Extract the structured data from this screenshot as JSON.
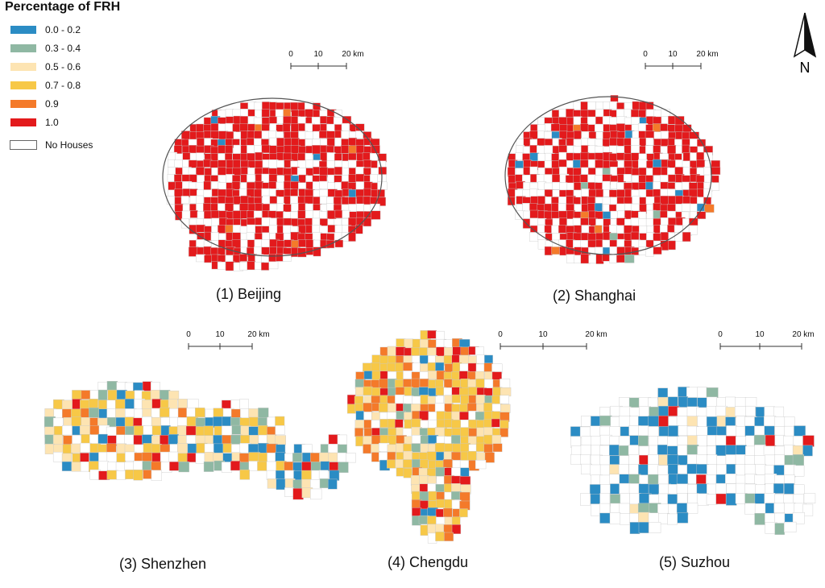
{
  "legend": {
    "title": "Percentage of FRH",
    "items": [
      {
        "label": "0.0 - 0.2",
        "color": "#2b8cc4"
      },
      {
        "label": "0.3 - 0.4",
        "color": "#8fb8a3"
      },
      {
        "label": "0.5 - 0.6",
        "color": "#fde4b2"
      },
      {
        "label": "0.7 - 0.8",
        "color": "#f7c847"
      },
      {
        "label": "0.9",
        "color": "#f47a2a"
      },
      {
        "label": "1.0",
        "color": "#e31a1c"
      },
      {
        "label": "No Houses",
        "color": "#ffffff"
      }
    ]
  },
  "scalebar_ticks": [
    "0",
    "10",
    "20 km"
  ],
  "north_label": "N",
  "cities": [
    {
      "label": "(1) Beijing",
      "dominant": "1.0"
    },
    {
      "label": "(2) Shanghai",
      "dominant": "1.0"
    },
    {
      "label": "(3) Shenzhen",
      "dominant": "mixed"
    },
    {
      "label": "(4) Chengdu",
      "dominant": "0.7 - 0.8"
    },
    {
      "label": "(5) Suzhou",
      "dominant": "0.0 - 0.2"
    }
  ]
}
